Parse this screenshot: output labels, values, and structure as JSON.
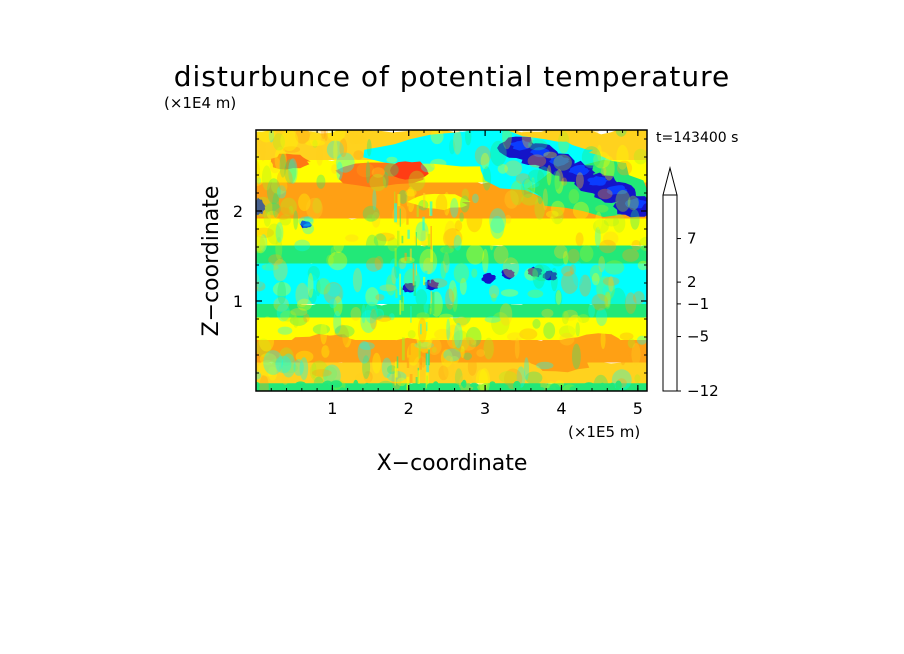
{
  "chart_data": {
    "type": "heatmap",
    "title": "disturbunce of potential temperature",
    "xlabel": "X−coordinate",
    "ylabel": "Z−coordinate",
    "x_scale_label": "(×1E5 m)",
    "y_scale_label": "(×1E4 m)",
    "time_label": "t=143400 s",
    "xlim": [
      0,
      5.12
    ],
    "ylim": [
      0,
      2.9
    ],
    "x_ticks": [
      1,
      2,
      3,
      4,
      5
    ],
    "x_tick_labels": [
      "1",
      "2",
      "3",
      "4",
      "5"
    ],
    "y_ticks": [
      1,
      2
    ],
    "y_tick_labels": [
      "1",
      "2"
    ],
    "colorbar": {
      "levels": [
        -12,
        -5,
        -1,
        2,
        7
      ],
      "level_labels": [
        "−12",
        "−5",
        "−1",
        "2",
        "7"
      ],
      "colors": [
        "#e8169c",
        "#c8109a",
        "#a01ab4",
        "#6e1aa8",
        "#1414c8",
        "#0a3cff",
        "#1ea0ff",
        "#00ffff",
        "#22e878",
        "#a8f020",
        "#ffff00",
        "#ffd21e",
        "#ffa014",
        "#ff7814",
        "#ff3c14",
        "#f01e28",
        "#f08ca0",
        "#fabebe"
      ],
      "extend": "max"
    },
    "bands": [
      {
        "z": [
          0.0,
          0.12
        ],
        "level": "-1 to 2",
        "color": "#22e878"
      },
      {
        "z": [
          0.12,
          0.35
        ],
        "level": "2",
        "color": "#ffd21e"
      },
      {
        "z": [
          0.35,
          0.6
        ],
        "level": "2",
        "color": "#ffa014"
      },
      {
        "z": [
          0.6,
          0.85
        ],
        "level": "0",
        "color": "#ffff00"
      },
      {
        "z": [
          0.85,
          1.0
        ],
        "level": "-1",
        "color": "#22e878"
      },
      {
        "z": [
          1.0,
          1.45
        ],
        "level": "-2",
        "color": "#00ffff"
      },
      {
        "z": [
          1.45,
          1.65
        ],
        "level": "-1",
        "color": "#22e878"
      },
      {
        "z": [
          1.65,
          1.95
        ],
        "level": "1",
        "color": "#ffff00"
      },
      {
        "z": [
          1.95,
          2.35
        ],
        "level": "3",
        "color": "#ffa014"
      },
      {
        "z": [
          2.35,
          2.6
        ],
        "level": "1",
        "color": "#ffff00"
      },
      {
        "z": [
          2.6,
          2.9
        ],
        "level": "2",
        "color": "#ffd21e"
      }
    ],
    "features": [
      {
        "name": "upper negative anomaly",
        "x": [
          3.4,
          5.1
        ],
        "z": [
          2.0,
          2.8
        ],
        "level": "-5",
        "color": "#1414c8"
      },
      {
        "name": "upper cool band",
        "x": [
          1.5,
          4.2
        ],
        "z": [
          2.5,
          2.85
        ],
        "level": "-1",
        "color": "#00ffff"
      },
      {
        "name": "mid negative spots",
        "x": [
          1.9,
          3.9
        ],
        "z": [
          1.2,
          1.4
        ],
        "level": "-5",
        "color": "#1414c8"
      },
      {
        "name": "left edge negative spot",
        "x": [
          0.0,
          0.1
        ],
        "z": [
          1.95,
          2.1
        ],
        "level": "-5",
        "color": "#1414c8"
      }
    ]
  }
}
